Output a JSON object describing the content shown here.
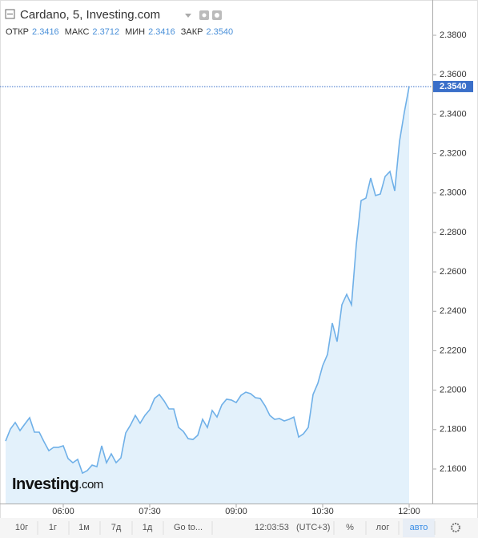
{
  "header": {
    "title": "Cardano, 5, Investing.com",
    "ohlc": [
      {
        "label": "ОТКР",
        "value": "2.3416"
      },
      {
        "label": "МАКС",
        "value": "2.3712"
      },
      {
        "label": "МИН",
        "value": "2.3416"
      },
      {
        "label": "ЗАКР",
        "value": "2.3540"
      }
    ]
  },
  "chart_data": {
    "type": "area",
    "color": "#6fb0e8",
    "fill": "#e3f1fb",
    "categories": [
      null,
      null,
      null,
      null,
      null,
      null,
      null,
      null,
      null,
      null,
      null,
      null,
      "06:00",
      null,
      null,
      null,
      null,
      null,
      null,
      null,
      null,
      null,
      null,
      null,
      null,
      null,
      null,
      null,
      null,
      null,
      "07:30",
      null,
      null,
      null,
      null,
      null,
      null,
      null,
      null,
      null,
      null,
      null,
      null,
      null,
      null,
      null,
      null,
      null,
      "09:00",
      null,
      null,
      null,
      null,
      null,
      null,
      null,
      null,
      null,
      null,
      null,
      null,
      null,
      null,
      null,
      null,
      null,
      "10:30",
      null,
      null,
      null,
      null,
      null,
      null,
      null,
      null,
      null,
      null,
      null,
      null,
      null,
      null,
      null,
      null,
      null,
      "12:00"
    ],
    "values": [
      2.1742,
      2.1803,
      2.1836,
      2.1795,
      2.1828,
      2.186,
      2.1787,
      2.1787,
      2.1738,
      2.1693,
      2.171,
      2.171,
      2.1718,
      2.1653,
      2.1632,
      2.1649,
      2.1579,
      2.1592,
      2.162,
      2.1612,
      2.1718,
      2.1632,
      2.1677,
      2.1632,
      2.1657,
      2.1783,
      2.1823,
      2.1872,
      2.1832,
      2.1872,
      2.1901,
      2.1958,
      2.1978,
      2.1945,
      2.1905,
      2.1905,
      2.1811,
      2.1791,
      2.1754,
      2.175,
      2.1771,
      2.1852,
      2.1811,
      2.1897,
      2.1864,
      2.1925,
      2.1954,
      2.195,
      2.1937,
      2.1974,
      2.199,
      2.1982,
      2.1962,
      2.1958,
      2.1921,
      2.1872,
      2.1852,
      2.1856,
      2.1844,
      2.1852,
      2.1864,
      2.1762,
      2.1779,
      2.1811,
      2.1978,
      2.2035,
      2.2124,
      2.2181,
      2.234,
      2.2246,
      2.2433,
      2.2486,
      2.2433,
      2.2739,
      2.2962,
      2.2974,
      2.3076,
      2.2987,
      2.2995,
      2.3084,
      2.3109,
      2.3011,
      2.3263,
      2.341,
      2.354
    ],
    "ylim": [
      2.1425,
      2.3979
    ],
    "yticks": [
      {
        "value": 2.16,
        "label": "2.1600"
      },
      {
        "value": 2.18,
        "label": "2.1800"
      },
      {
        "value": 2.2,
        "label": "2.2000"
      },
      {
        "value": 2.22,
        "label": "2.2200"
      },
      {
        "value": 2.24,
        "label": "2.2400"
      },
      {
        "value": 2.26,
        "label": "2.2600"
      },
      {
        "value": 2.28,
        "label": "2.2800"
      },
      {
        "value": 2.3,
        "label": "2.3000"
      },
      {
        "value": 2.32,
        "label": "2.3200"
      },
      {
        "value": 2.34,
        "label": "2.3400"
      },
      {
        "value": 2.36,
        "label": "2.3600"
      },
      {
        "value": 2.38,
        "label": "2.3800"
      }
    ],
    "price_line": {
      "value": 2.354,
      "label": "2.3540"
    }
  },
  "logo": {
    "brand": "Investing",
    "suffix": ".com"
  },
  "toolbar": {
    "ranges": [
      "10г",
      "1г",
      "1м",
      "7д",
      "1д"
    ],
    "goto": "Go to...",
    "time": "12:03:53",
    "timezone": "(UTC+3)",
    "scales": [
      "%",
      "лог",
      "авто"
    ]
  }
}
